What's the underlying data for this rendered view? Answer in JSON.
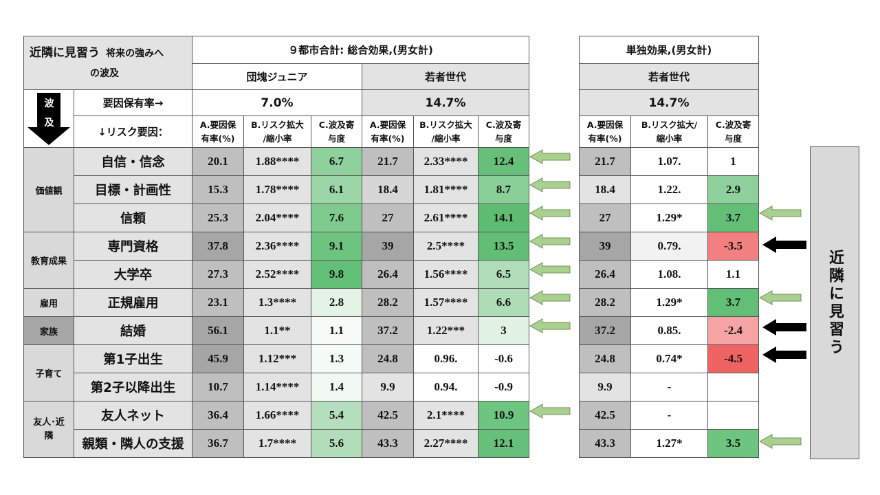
{
  "left": {
    "title_main": "近隣に見習う",
    "title_rest": "将来の強みへ",
    "title_line2": "の波及",
    "group_header": "９都市合計: 総合効果,(男女計)",
    "cohort1": "団塊ジュニア",
    "cohort2": "若者世代",
    "hakyu_label": "波及",
    "hakyu_label_1": "波",
    "hakyu_label_2": "及",
    "prevalence_label": "要因保有率→",
    "prevalence1": "7.0%",
    "prevalence2": "14.7%",
    "risk_label": "↓リスク要因：",
    "col_a": "A.要因保有率(%)",
    "col_a_1": "A.要因保",
    "col_a_2": "有率(%)",
    "col_b_1": "B.リスク拡大",
    "col_b_2": "/縮小率",
    "col_c_1": "C.波及寄",
    "col_c_2": "与度"
  },
  "right": {
    "group_header": "単独効果,(男女計)",
    "cohort": "若者世代",
    "prevalence": "14.7%",
    "col_a_1": "A.要因保",
    "col_a_2": "有率(%)",
    "col_b_1": "B.リスク拡大/",
    "col_b_2": "縮小率",
    "col_c_1": "C.波及寄",
    "col_c_2": "与度"
  },
  "categories": {
    "values": "価値観",
    "education": "教育成果",
    "employment": "雇用",
    "family": "家族",
    "childcare": "子育て",
    "friends": "友人･近隣",
    "friends_1": "友人･近",
    "friends_2": "隣"
  },
  "rows": [
    {
      "factor": "自信・信念",
      "a1": "20.1",
      "b1": "1.88****",
      "c1": "6.7",
      "a2": "21.7",
      "b2": "2.33****",
      "c2": "12.4",
      "ra": "21.7",
      "rb": "1.07.",
      "rc": "1"
    },
    {
      "factor": "目標・計画性",
      "a1": "15.3",
      "b1": "1.78****",
      "c1": "6.1",
      "a2": "18.4",
      "b2": "1.81****",
      "c2": "8.7",
      "ra": "18.4",
      "rb": "1.22.",
      "rc": "2.9"
    },
    {
      "factor": "信頼",
      "a1": "25.3",
      "b1": "2.04****",
      "c1": "7.6",
      "a2": "27",
      "b2": "2.61****",
      "c2": "14.1",
      "ra": "27",
      "rb": "1.29*",
      "rc": "3.7"
    },
    {
      "factor": "専門資格",
      "a1": "37.8",
      "b1": "2.36****",
      "c1": "9.1",
      "a2": "39",
      "b2": "2.5****",
      "c2": "13.5",
      "ra": "39",
      "rb": "0.79.",
      "rc": "-3.5"
    },
    {
      "factor": "大学卒",
      "a1": "27.3",
      "b1": "2.52****",
      "c1": "9.8",
      "a2": "26.4",
      "b2": "1.56****",
      "c2": "6.5",
      "ra": "26.4",
      "rb": "1.08.",
      "rc": "1.1"
    },
    {
      "factor": "正規雇用",
      "a1": "23.1",
      "b1": "1.3****",
      "c1": "2.8",
      "a2": "28.2",
      "b2": "1.57****",
      "c2": "6.6",
      "ra": "28.2",
      "rb": "1.29*",
      "rc": "3.7"
    },
    {
      "factor": "結婚",
      "a1": "56.1",
      "b1": "1.1**",
      "c1": "1.1",
      "a2": "37.2",
      "b2": "1.22***",
      "c2": "3",
      "ra": "37.2",
      "rb": "0.85.",
      "rc": "-2.4"
    },
    {
      "factor": "第1子出生",
      "a1": "45.9",
      "b1": "1.12***",
      "c1": "1.3",
      "a2": "24.8",
      "b2": "0.96.",
      "c2": "-0.6",
      "ra": "24.8",
      "rb": "0.74*",
      "rc": "-4.5"
    },
    {
      "factor": "第2子以降出生",
      "a1": "10.7",
      "b1": "1.14****",
      "c1": "1.4",
      "a2": "9.9",
      "b2": "0.94.",
      "c2": "-0.9",
      "ra": "9.9",
      "rb": "-",
      "rc": ""
    },
    {
      "factor": "友人ネット",
      "a1": "36.4",
      "b1": "1.66****",
      "c1": "5.4",
      "a2": "42.5",
      "b2": "2.1****",
      "c2": "10.9",
      "ra": "42.5",
      "rb": "-",
      "rc": ""
    },
    {
      "factor": "親類・隣人の支援",
      "a1": "36.7",
      "b1": "1.7****",
      "c1": "5.6",
      "a2": "43.3",
      "b2": "2.27****",
      "c2": "12.1",
      "ra": "43.3",
      "rb": "1.27*",
      "rc": "3.5"
    }
  ],
  "side_label": "近隣に見習う",
  "colors": {
    "green_dark": "#5fbd72",
    "green_light": "#e8f5ea",
    "red": "#ef6a6a",
    "grey": "#d9d9d9",
    "arrow_green": "#a9d08e",
    "arrow_black": "#000000"
  }
}
